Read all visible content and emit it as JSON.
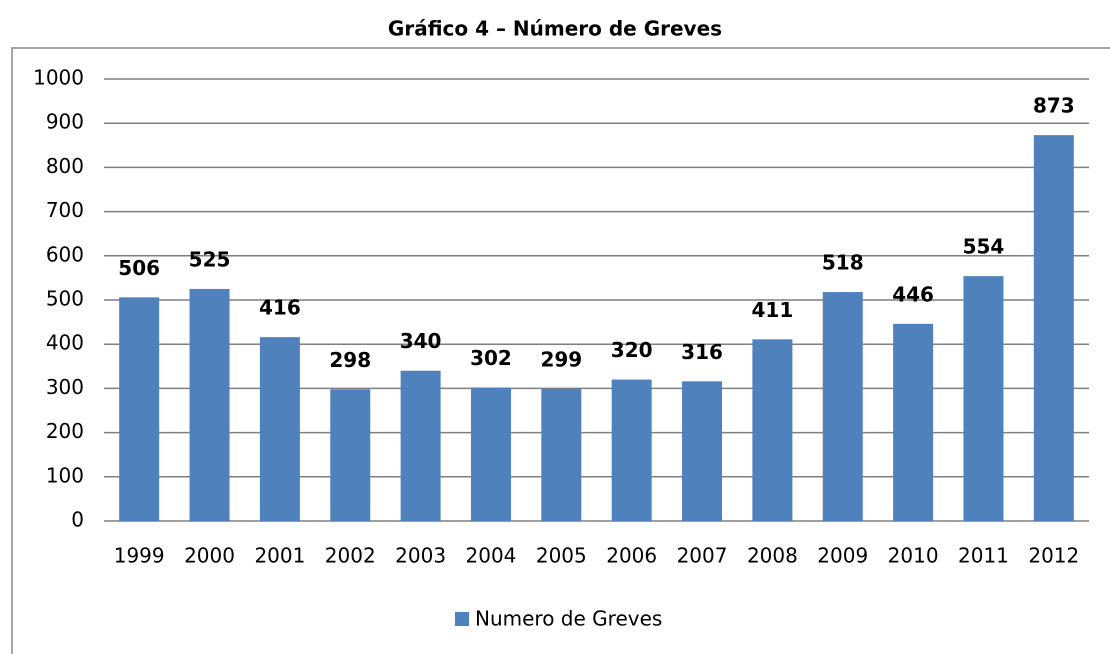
{
  "chart_data": {
    "type": "bar",
    "title": "Gráfico 4 – Número de Greves",
    "categories": [
      "1999",
      "2000",
      "2001",
      "2002",
      "2003",
      "2004",
      "2005",
      "2006",
      "2007",
      "2008",
      "2009",
      "2010",
      "2011",
      "2012"
    ],
    "series": [
      {
        "name": "Numero de Greves",
        "color": "#4f81bd",
        "values": [
          506,
          525,
          416,
          298,
          340,
          302,
          299,
          320,
          316,
          411,
          518,
          446,
          554,
          873
        ]
      }
    ],
    "ylim": [
      0,
      1000
    ],
    "yticks": [
      0,
      100,
      200,
      300,
      400,
      500,
      600,
      700,
      800,
      900,
      1000
    ],
    "grid": true,
    "legend": "bottom"
  }
}
